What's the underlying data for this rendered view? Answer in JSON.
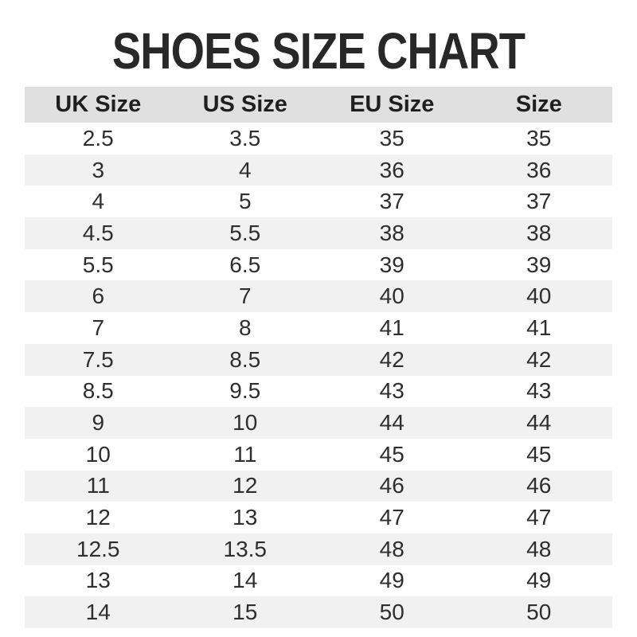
{
  "chart_data": {
    "type": "table",
    "title": "SHOES SIZE CHART",
    "columns": [
      "UK Size",
      "US Size",
      "EU Size",
      "Size"
    ],
    "rows": [
      [
        "2.5",
        "3.5",
        "35",
        "35"
      ],
      [
        "3",
        "4",
        "36",
        "36"
      ],
      [
        "4",
        "5",
        "37",
        "37"
      ],
      [
        "4.5",
        "5.5",
        "38",
        "38"
      ],
      [
        "5.5",
        "6.5",
        "39",
        "39"
      ],
      [
        "6",
        "7",
        "40",
        "40"
      ],
      [
        "7",
        "8",
        "41",
        "41"
      ],
      [
        "7.5",
        "8.5",
        "42",
        "42"
      ],
      [
        "8.5",
        "9.5",
        "43",
        "43"
      ],
      [
        "9",
        "10",
        "44",
        "44"
      ],
      [
        "10",
        "11",
        "45",
        "45"
      ],
      [
        "11",
        "12",
        "46",
        "46"
      ],
      [
        "12",
        "13",
        "47",
        "47"
      ],
      [
        "12.5",
        "13.5",
        "48",
        "48"
      ],
      [
        "13",
        "14",
        "49",
        "49"
      ],
      [
        "14",
        "15",
        "50",
        "50"
      ]
    ],
    "layout": {
      "striped": true,
      "stripe_pattern": "even-rows-gray",
      "header_position": "top"
    }
  },
  "colors": {
    "page_bg": "#ffffff",
    "title_text": "#282828",
    "header_bg": "#e0e0e0",
    "header_text": "#1f1f1f",
    "row_bg": "#ffffff",
    "stripe_bg": "#f1f1f1",
    "cell_text": "#2e2e2e"
  }
}
